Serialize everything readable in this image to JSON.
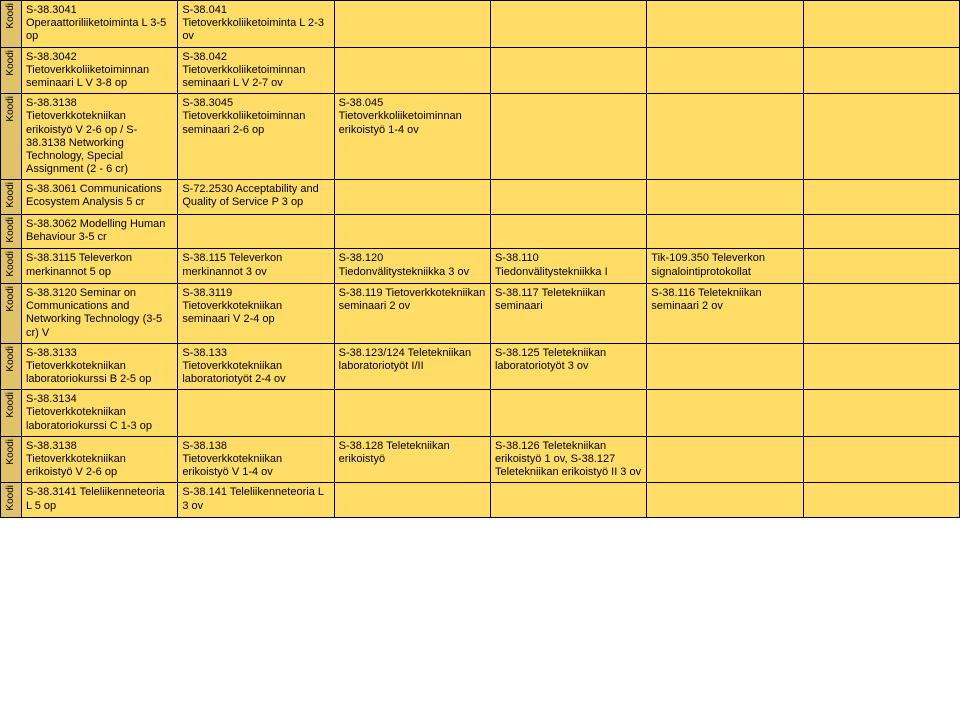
{
  "label_text": "Koodi",
  "colors": {
    "label_bg": "#e0c268",
    "content_bg": "#ffdd66",
    "border": "#000000"
  },
  "rows": [
    {
      "c1": "S-38.3041 Operaattoriliiketoiminta L 3-5 op",
      "c2": "S-38.041 Tietoverkkoliiketoiminta L 2-3 ov",
      "c3": "",
      "c4": "",
      "c5": "",
      "c6": ""
    },
    {
      "c1": "S-38.3042 Tietoverkkoliiketoiminnan seminaari L V 3-8 op",
      "c2": "S-38.042 Tietoverkkoliiketoiminnan seminaari L V 2-7 ov",
      "c3": "",
      "c4": "",
      "c5": "",
      "c6": ""
    },
    {
      "c1": "S-38.3138 Tietoverkkotekniikan erikoistyö V 2-6 op / S-38.3138 Networking Technology, Special Assignment (2 - 6 cr)",
      "c2": "S-38.3045 Tietoverkkoliiketoiminnan seminaari 2-6 op",
      "c3": "S-38.045 Tietoverkkoliiketoiminnan erikoistyö 1-4 ov",
      "c4": "",
      "c5": "",
      "c6": ""
    },
    {
      "c1": "S-38.3061 Communications Ecosystem Analysis 5 cr",
      "c2": "S-72.2530 Acceptability and Quality of Service P 3 op",
      "c3": "",
      "c4": "",
      "c5": "",
      "c6": ""
    },
    {
      "c1": "S-38.3062 Modelling Human Behaviour 3-5 cr",
      "c2": "",
      "c3": "",
      "c4": "",
      "c5": "",
      "c6": ""
    },
    {
      "c1": "S-38.3115 Televerkon merkinannot 5 op",
      "c2": "S-38.115 Televerkon merkinannot 3 ov",
      "c3": "S-38.120 Tiedonvälitystekniikka 3 ov",
      "c4": "S-38.110 Tiedonvälitystekniikka I",
      "c5": "Tik-109.350 Televerkon signalointiprotokollat",
      "c6": ""
    },
    {
      "c1": "S-38.3120 Seminar on Communications and Networking Technology (3-5 cr) V",
      "c2": "S-38.3119 Tietoverkkotekniikan seminaari V 2-4 op",
      "c3": "S-38.119 Tietoverkkotekniikan seminaari 2 ov",
      "c4": "S-38.117 Teletekniikan seminaari",
      "c5": "S-38.116 Teletekniikan seminaari 2 ov",
      "c6": ""
    },
    {
      "c1": "S-38.3133 Tietoverkkotekniikan laboratoriokurssi B 2-5 op",
      "c2": "S-38.133 Tietoverkkotekniikan laboratoriotyöt 2-4 ov",
      "c3": "S-38.123/124 Teletekniikan laboratoriotyöt I/II",
      "c4": "S-38.125 Teletekniikan laboratoriotyöt 3 ov",
      "c5": "",
      "c6": ""
    },
    {
      "c1": "S-38.3134 Tietoverkkotekniikan laboratoriokurssi C 1-3 op",
      "c2": "",
      "c3": "",
      "c4": "",
      "c5": "",
      "c6": ""
    },
    {
      "c1": "S-38.3138 Tietoverkkotekniikan erikoistyö V 2-6 op",
      "c2": "S-38.138 Tietoverkkotekniikan erikoistyö V 1-4 ov",
      "c3": "S-38.128 Teletekniikan erikoistyö",
      "c4": "S-38.126 Teletekniikan erikoistyö 1 ov, S-38.127 Teletekniikan erikoistyö II 3 ov",
      "c5": "",
      "c6": ""
    },
    {
      "c1": "S-38.3141 Teleliikenneteoria L 5 op",
      "c2": "S-38.141 Teleliikenneteoria L 3 ov",
      "c3": "",
      "c4": "",
      "c5": "",
      "c6": ""
    }
  ]
}
